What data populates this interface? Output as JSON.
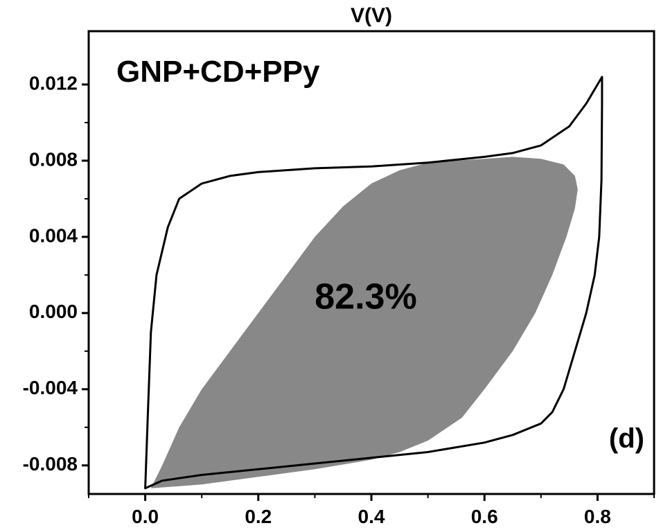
{
  "chart_data": {
    "type": "line",
    "title": "GNP+CD+PPy",
    "xlabel": "V(V)",
    "ylabel": "",
    "xlim": [
      -0.1,
      0.9
    ],
    "ylim": [
      -0.0095,
      0.0148
    ],
    "x_ticks": [
      0.0,
      0.2,
      0.4,
      0.6,
      0.8
    ],
    "x_tick_labels": [
      "0.0",
      "0.2",
      "0.4",
      "0.6",
      "0.8"
    ],
    "y_ticks": [
      0.012,
      0.008,
      0.004,
      0.0,
      -0.004,
      -0.008
    ],
    "y_tick_labels": [
      "0.012",
      "0.008",
      "0.004",
      "0.000",
      "-0.004",
      "-0.008"
    ],
    "grid": false,
    "legend": "none",
    "annotations": {
      "shaded_ratio_label": "82.3%",
      "panel_label": "(d)"
    },
    "colors": {
      "outline": "#000000",
      "shaded": "#888888"
    },
    "series": [
      {
        "kind": "outline",
        "points": [
          [
            0.0,
            -0.0092
          ],
          [
            0.005,
            -0.005
          ],
          [
            0.01,
            -0.001
          ],
          [
            0.02,
            0.002
          ],
          [
            0.04,
            0.0045
          ],
          [
            0.06,
            0.006
          ],
          [
            0.1,
            0.0068
          ],
          [
            0.15,
            0.0072
          ],
          [
            0.2,
            0.0074
          ],
          [
            0.3,
            0.0076
          ],
          [
            0.4,
            0.0077
          ],
          [
            0.5,
            0.0079
          ],
          [
            0.6,
            0.0082
          ],
          [
            0.65,
            0.0084
          ],
          [
            0.7,
            0.0088
          ],
          [
            0.75,
            0.0098
          ],
          [
            0.78,
            0.011
          ],
          [
            0.8,
            0.012
          ],
          [
            0.808,
            0.0124
          ],
          [
            0.808,
            0.011
          ],
          [
            0.807,
            0.007
          ],
          [
            0.803,
            0.004
          ],
          [
            0.795,
            0.002
          ],
          [
            0.78,
            0.0
          ],
          [
            0.76,
            -0.002
          ],
          [
            0.74,
            -0.004
          ],
          [
            0.72,
            -0.0052
          ],
          [
            0.7,
            -0.0058
          ],
          [
            0.65,
            -0.0064
          ],
          [
            0.6,
            -0.0068
          ],
          [
            0.5,
            -0.0073
          ],
          [
            0.4,
            -0.0076
          ],
          [
            0.3,
            -0.0079
          ],
          [
            0.2,
            -0.0082
          ],
          [
            0.1,
            -0.0085
          ],
          [
            0.03,
            -0.0088
          ],
          [
            0.0,
            -0.0092
          ]
        ]
      },
      {
        "kind": "shaded",
        "points": [
          [
            0.01,
            -0.0092
          ],
          [
            0.03,
            -0.008
          ],
          [
            0.06,
            -0.006
          ],
          [
            0.1,
            -0.004
          ],
          [
            0.15,
            -0.002
          ],
          [
            0.2,
            0.0
          ],
          [
            0.25,
            0.002
          ],
          [
            0.3,
            0.004
          ],
          [
            0.35,
            0.0056
          ],
          [
            0.4,
            0.0068
          ],
          [
            0.45,
            0.0075
          ],
          [
            0.5,
            0.0079
          ],
          [
            0.55,
            0.008
          ],
          [
            0.6,
            0.0081
          ],
          [
            0.65,
            0.0082
          ],
          [
            0.7,
            0.0081
          ],
          [
            0.74,
            0.0078
          ],
          [
            0.76,
            0.0072
          ],
          [
            0.765,
            0.0065
          ],
          [
            0.76,
            0.0055
          ],
          [
            0.745,
            0.004
          ],
          [
            0.72,
            0.002
          ],
          [
            0.69,
            0.0
          ],
          [
            0.65,
            -0.002
          ],
          [
            0.6,
            -0.004
          ],
          [
            0.56,
            -0.0055
          ],
          [
            0.5,
            -0.0067
          ],
          [
            0.45,
            -0.0073
          ],
          [
            0.4,
            -0.0077
          ],
          [
            0.3,
            -0.0082
          ],
          [
            0.2,
            -0.0086
          ],
          [
            0.1,
            -0.009
          ],
          [
            0.01,
            -0.0092
          ]
        ]
      }
    ]
  }
}
